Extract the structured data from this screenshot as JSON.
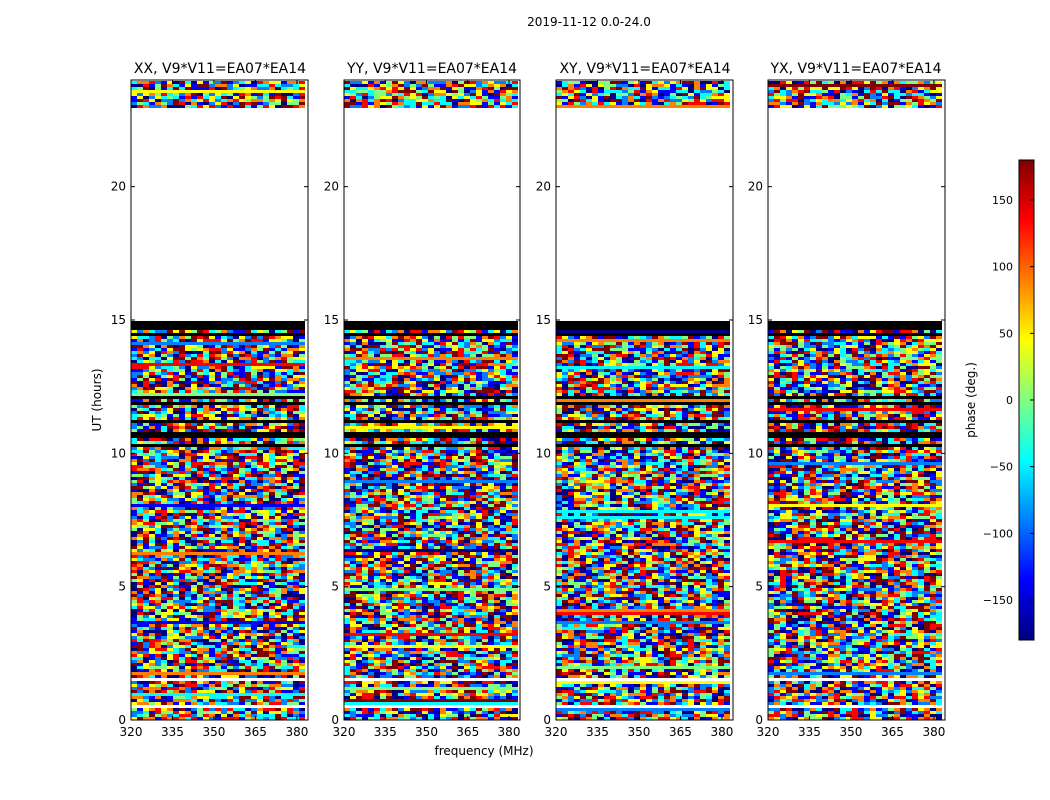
{
  "figure": {
    "suptitle": "2019-11-12 0.0-24.0"
  },
  "chart_data": {
    "type": "heatmap",
    "title": "2019-11-12 0.0-24.0",
    "xlabel": "frequency (MHz)",
    "ylabel": "UT (hours)",
    "xlim": [
      320,
      384
    ],
    "ylim": [
      0,
      24
    ],
    "xticks": [
      320,
      335,
      350,
      365,
      380
    ],
    "yticks": [
      0,
      5,
      10,
      15,
      20
    ],
    "panels": [
      {
        "name": "xx",
        "title": "XX, V9*V11=EA07*EA14"
      },
      {
        "name": "yy",
        "title": "YY, V9*V11=EA07*EA14"
      },
      {
        "name": "xy",
        "title": "XY, V9*V11=EA07*EA14"
      },
      {
        "name": "yx",
        "title": "YX, V9*V11=EA07*EA14"
      }
    ],
    "no_data_ranges_hours": [
      [
        0.45,
        0.6
      ],
      [
        1.45,
        1.6
      ],
      [
        14.95,
        23.0
      ]
    ],
    "flagged_rows_hours": [
      14.45,
      14.65,
      14.85,
      10.3,
      10.7,
      11.2,
      11.9,
      12.1
    ],
    "colorbar": {
      "label": "phase (deg.)",
      "range": [
        -180,
        180
      ],
      "ticks": [
        150,
        100,
        50,
        0,
        -50,
        -100,
        -150
      ],
      "tick_labels": [
        "150",
        "100",
        "50",
        "0",
        "−50",
        "−100",
        "−150"
      ],
      "colormap": [
        "#00007f",
        "#0000ff",
        "#007fff",
        "#00ffff",
        "#7fff7f",
        "#ffff00",
        "#ff7f00",
        "#ff0000",
        "#7f0000"
      ]
    }
  }
}
